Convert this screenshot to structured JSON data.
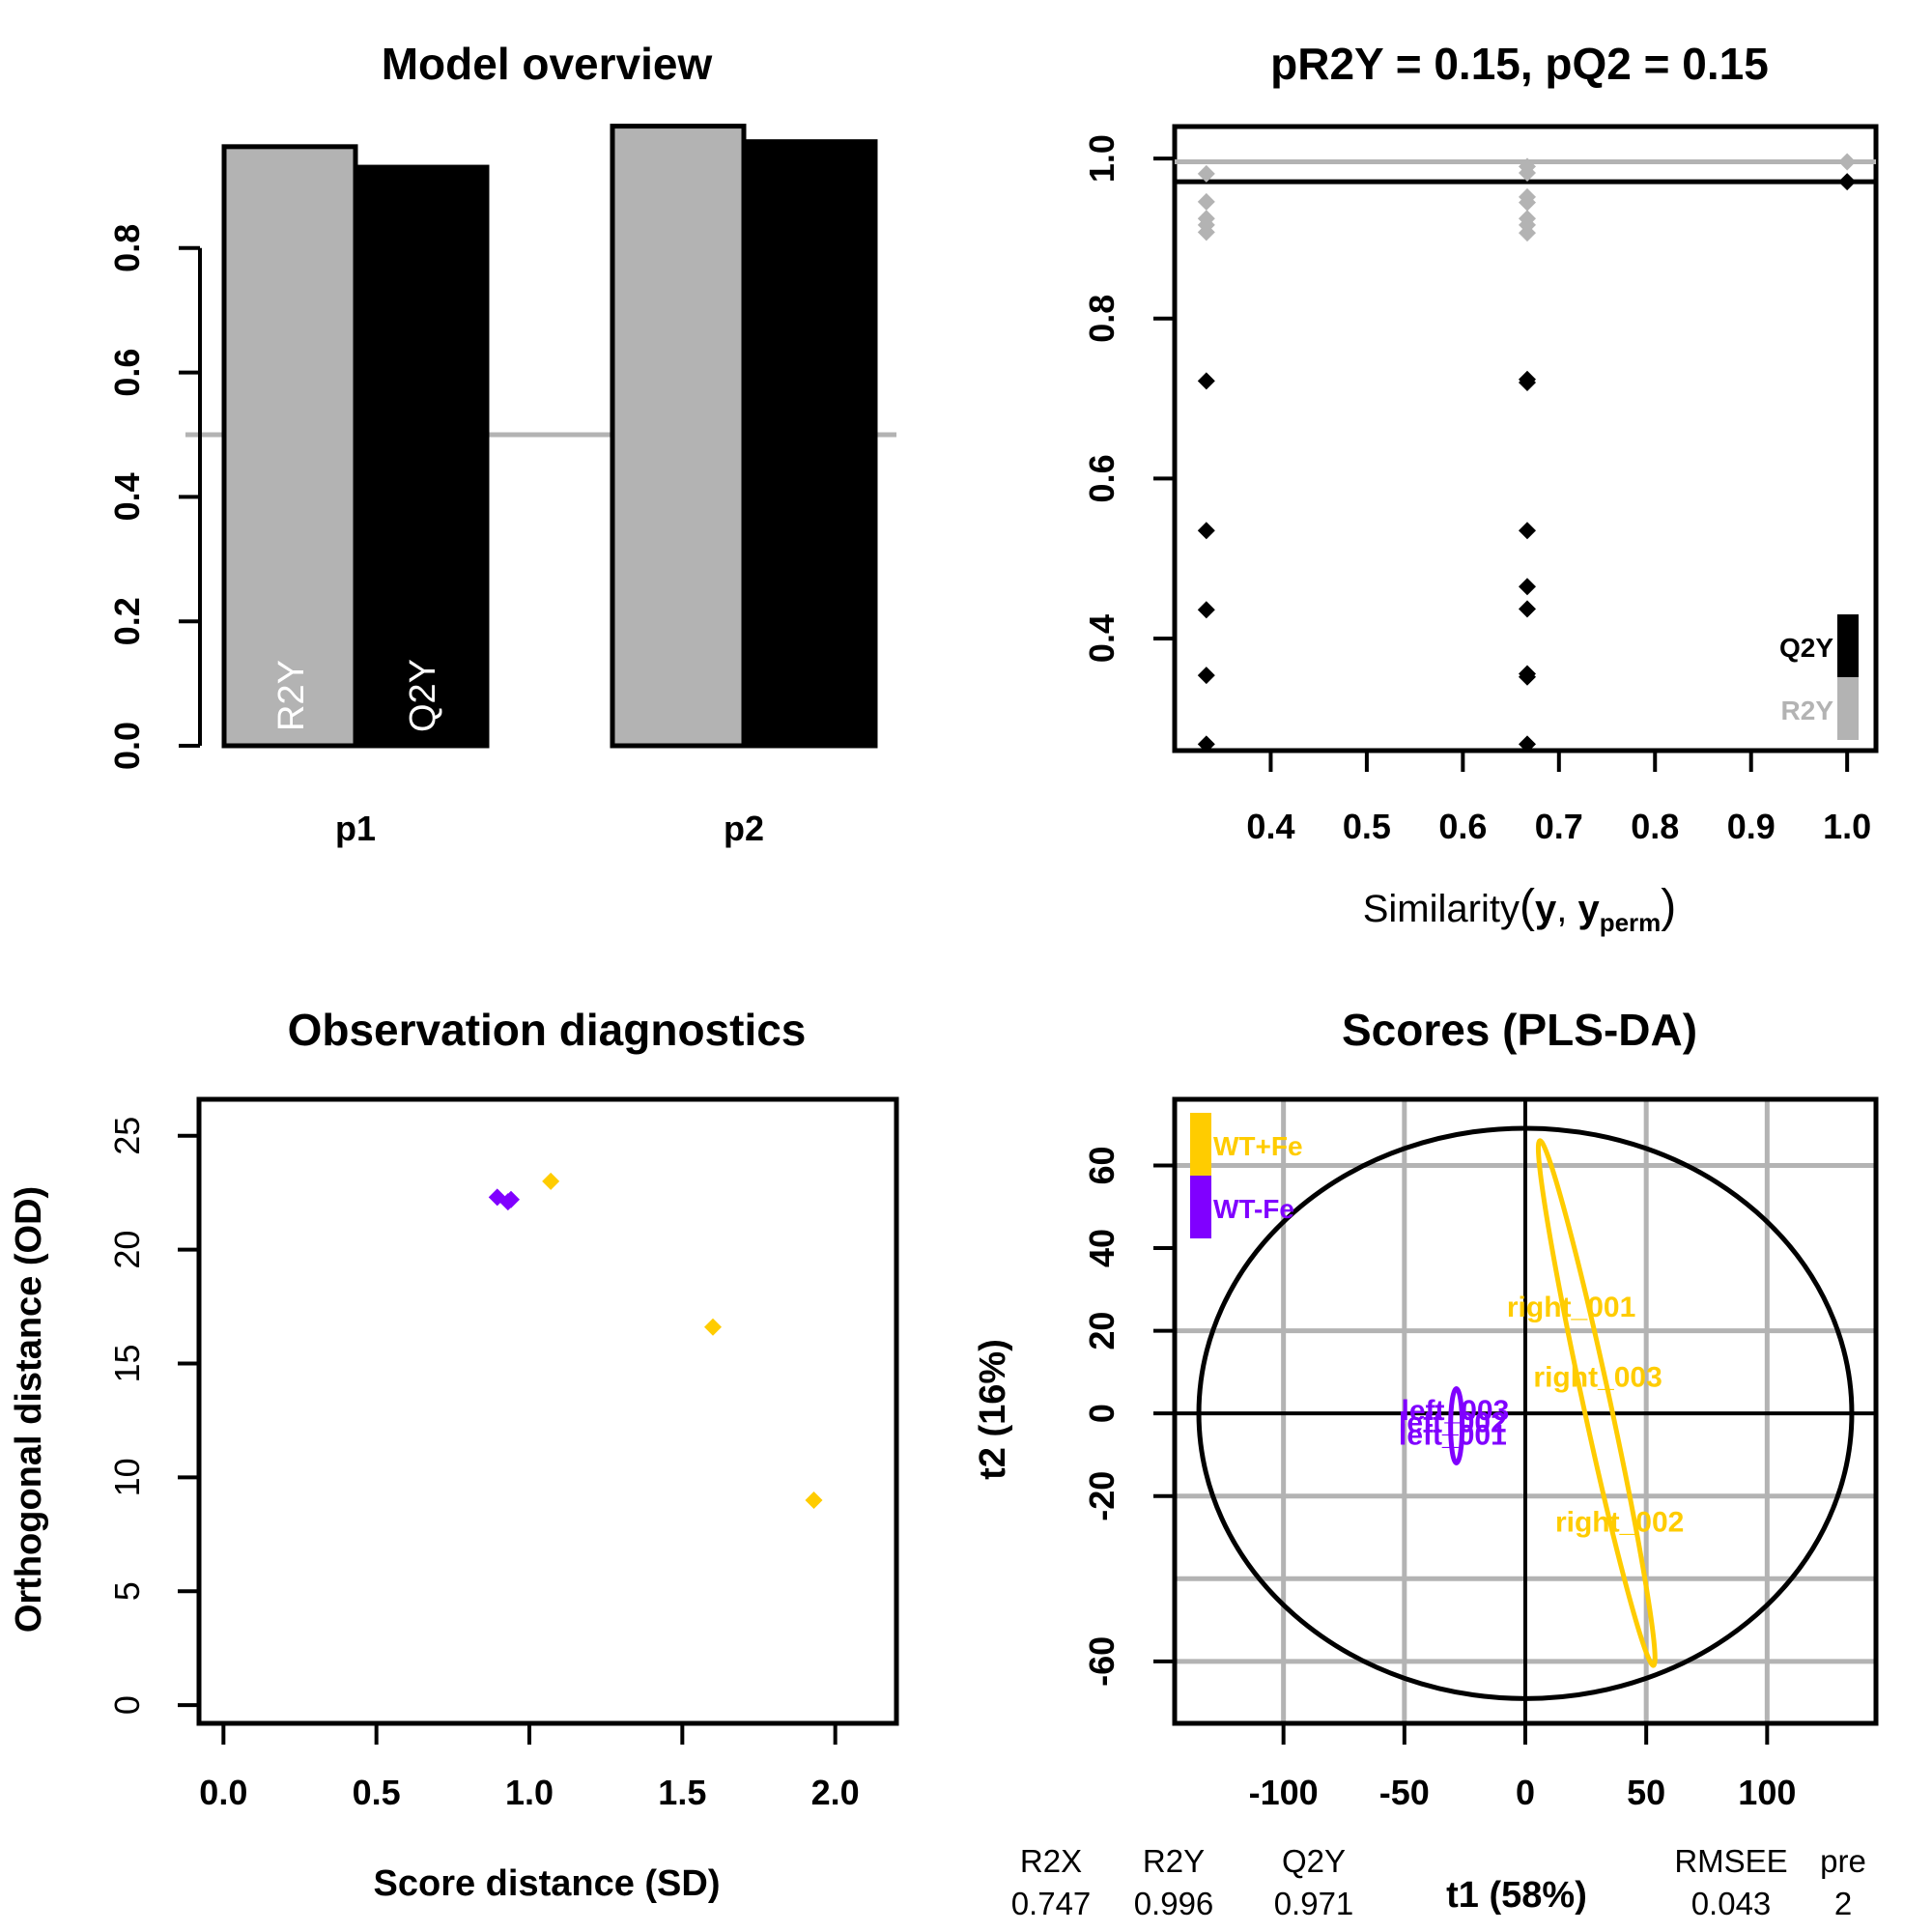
{
  "chart_data": [
    {
      "id": "model_overview",
      "type": "bar",
      "title": "Model overview",
      "categories": [
        "p1",
        "p2"
      ],
      "series": [
        {
          "name": "R2Y",
          "values": [
            0.963,
            0.996
          ],
          "color": "#B3B3B3"
        },
        {
          "name": "Q2Y",
          "values": [
            0.93,
            0.971
          ],
          "color": "#000000"
        }
      ],
      "bar_labels": [
        "R2Y",
        "Q2Y"
      ],
      "reference_line": 0.5,
      "yticks": [
        "0.0",
        "0.2",
        "0.4",
        "0.6",
        "0.8"
      ],
      "ylim": [
        0,
        1.0
      ]
    },
    {
      "id": "permutation",
      "type": "scatter",
      "title": "pR2Y = 0.15, pQ2 = 0.15",
      "xlabel_main": "Similarity",
      "xlabel_args": [
        "y",
        "y"
      ],
      "xlabel_sub": "perm",
      "xlim": [
        0.3,
        1.03
      ],
      "ylim": [
        0.26,
        1.04
      ],
      "xticks": [
        "0.4",
        "0.5",
        "0.6",
        "0.7",
        "0.8",
        "0.9",
        "1.0"
      ],
      "yticks": [
        "0.4",
        "0.6",
        "0.8",
        "1.0"
      ],
      "series": [
        {
          "name": "R2Y",
          "color": "#B3B3B3",
          "points": [
            [
              0.333,
              0.981
            ],
            [
              0.333,
              0.946
            ],
            [
              0.333,
              0.925
            ],
            [
              0.333,
              0.917
            ],
            [
              0.333,
              0.908
            ],
            [
              0.667,
              0.99
            ],
            [
              0.667,
              0.982
            ],
            [
              0.667,
              0.952
            ],
            [
              0.667,
              0.945
            ],
            [
              0.667,
              0.925
            ],
            [
              0.667,
              0.917
            ],
            [
              0.667,
              0.907
            ],
            [
              1.0,
              0.996
            ]
          ],
          "reference": 0.996
        },
        {
          "name": "Q2Y",
          "color": "#000000",
          "points": [
            [
              0.333,
              0.722
            ],
            [
              0.333,
              0.535
            ],
            [
              0.333,
              0.436
            ],
            [
              0.333,
              0.354
            ],
            [
              0.333,
              0.268
            ],
            [
              0.667,
              0.724
            ],
            [
              0.667,
              0.72
            ],
            [
              0.667,
              0.535
            ],
            [
              0.667,
              0.465
            ],
            [
              0.667,
              0.437
            ],
            [
              0.667,
              0.356
            ],
            [
              0.667,
              0.352
            ],
            [
              0.667,
              0.268
            ],
            [
              1.0,
              0.971
            ]
          ],
          "reference": 0.971
        }
      ],
      "legend": [
        "Q2Y",
        "R2Y"
      ],
      "legend_position": "bottom-right"
    },
    {
      "id": "observation_diagnostics",
      "type": "scatter",
      "title": "Observation diagnostics",
      "xlabel": "Score distance (SD)",
      "ylabel": "Orthogonal distance (OD)",
      "xlim": [
        -0.08,
        2.2
      ],
      "ylim": [
        -0.8,
        26.6
      ],
      "xticks": [
        "0.0",
        "0.5",
        "1.0",
        "1.5",
        "2.0"
      ],
      "yticks": [
        "0",
        "5",
        "10",
        "15",
        "20",
        "25"
      ],
      "series": [
        {
          "name": "WT-Fe",
          "color": "#8000FF",
          "points": [
            [
              0.895,
              22.3
            ],
            [
              0.93,
              22.1
            ],
            [
              0.94,
              22.2
            ]
          ]
        },
        {
          "name": "WT+Fe",
          "color": "#FFCC00",
          "points": [
            [
              1.07,
              23.0
            ],
            [
              1.6,
              16.6
            ],
            [
              1.93,
              9.0
            ]
          ]
        }
      ]
    },
    {
      "id": "scores_plsda",
      "type": "scatter",
      "title": "Scores (PLS-DA)",
      "xlabel": "t1 (58%)",
      "ylabel": "t2 (16%)",
      "xlim": [
        -145,
        145
      ],
      "ylim": [
        -75,
        76
      ],
      "xticks": [
        "-100",
        "-50",
        "0",
        "50",
        "100"
      ],
      "yticks": [
        "-60",
        "-20",
        "0",
        "20",
        "40",
        "60"
      ],
      "series": [
        {
          "name": "WT+Fe",
          "color": "#FFCC00",
          "labels": [
            {
              "text": "right_001",
              "x": 19,
              "y": 26
            },
            {
              "text": "right_003",
              "x": 30,
              "y": 9
            },
            {
              "text": "right_002",
              "x": 39,
              "y": -26
            }
          ]
        },
        {
          "name": "WT-Fe",
          "color": "#8000FF",
          "labels": [
            {
              "text": "left_003",
              "x": -29,
              "y": 1
            },
            {
              "text": "left_002",
              "x": -30,
              "y": -2
            },
            {
              "text": "left_001",
              "x": -30,
              "y": -5
            }
          ]
        }
      ],
      "legend": [
        "WT+Fe",
        "WT-Fe"
      ],
      "legend_position": "top-left",
      "summary": {
        "headers": [
          "R2X",
          "R2Y",
          "Q2Y",
          "RMSEE",
          "pre"
        ],
        "values": [
          "0.747",
          "0.996",
          "0.971",
          "0.043",
          "2"
        ]
      }
    }
  ]
}
